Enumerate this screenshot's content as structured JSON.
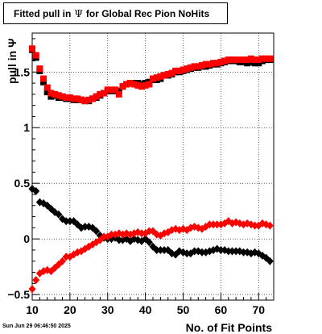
{
  "title": {
    "prefix": "Fitted pull in",
    "symbol": "Ψ",
    "suffix": "for Global Rec Pion NoHits"
  },
  "timestamp": "Sun Jun 29 06:46:50 2025",
  "chart_data": {
    "type": "scatter",
    "xlabel": "No. of Fit Points",
    "ylabel": "pull in Ψ",
    "xlim": [
      10,
      74
    ],
    "ylim": [
      -0.55,
      1.85
    ],
    "xticks": [
      10,
      20,
      30,
      40,
      50,
      60,
      70
    ],
    "yticks": [
      -0.5,
      0,
      0.5,
      1,
      1.5
    ],
    "ytick_labels": [
      "−0.5",
      "0",
      "0.5",
      "1",
      "1.5"
    ],
    "grid": true,
    "colors": {
      "series_1": "#000000",
      "series_2": "#ff0000"
    },
    "series": [
      {
        "marker": "square",
        "color": "#000000",
        "x": [
          10,
          11,
          12,
          13,
          14,
          15,
          16,
          17,
          18,
          19,
          20,
          21,
          22,
          23,
          24,
          25,
          26,
          27,
          28,
          29,
          30,
          31,
          32,
          33,
          34,
          35,
          36,
          37,
          38,
          39,
          40,
          41,
          42,
          43,
          44,
          45,
          46,
          47,
          48,
          49,
          50,
          51,
          52,
          53,
          54,
          55,
          56,
          57,
          58,
          59,
          60,
          61,
          62,
          63,
          64,
          65,
          66,
          67,
          68,
          69,
          70,
          71,
          72,
          73
        ],
        "y": [
          1.7,
          1.63,
          1.51,
          1.41,
          1.32,
          1.28,
          1.29,
          1.27,
          1.27,
          1.26,
          1.26,
          1.25,
          1.25,
          1.25,
          1.24,
          1.24,
          1.26,
          1.27,
          1.29,
          1.31,
          1.33,
          1.33,
          1.33,
          1.33,
          1.37,
          1.39,
          1.4,
          1.4,
          1.4,
          1.39,
          1.4,
          1.41,
          1.43,
          1.43,
          1.44,
          1.47,
          1.47,
          1.48,
          1.5,
          1.5,
          1.51,
          1.52,
          1.53,
          1.54,
          1.54,
          1.55,
          1.55,
          1.56,
          1.57,
          1.57,
          1.58,
          1.59,
          1.6,
          1.6,
          1.6,
          1.59,
          1.59,
          1.58,
          1.59,
          1.58,
          1.58,
          1.6,
          1.61,
          1.61
        ]
      },
      {
        "marker": "square",
        "color": "#ff0000",
        "x": [
          10,
          11,
          12,
          13,
          14,
          15,
          16,
          17,
          18,
          19,
          20,
          21,
          22,
          23,
          24,
          25,
          26,
          27,
          28,
          29,
          30,
          31,
          32,
          33,
          34,
          35,
          36,
          37,
          38,
          39,
          40,
          41,
          42,
          43,
          44,
          45,
          46,
          47,
          48,
          49,
          50,
          51,
          52,
          53,
          54,
          55,
          56,
          57,
          58,
          59,
          60,
          61,
          62,
          63,
          64,
          65,
          66,
          67,
          68,
          69,
          70,
          71,
          72,
          73
        ],
        "y": [
          1.71,
          1.65,
          1.53,
          1.44,
          1.36,
          1.31,
          1.3,
          1.29,
          1.28,
          1.27,
          1.27,
          1.26,
          1.26,
          1.25,
          1.24,
          1.25,
          1.26,
          1.28,
          1.3,
          1.31,
          1.34,
          1.34,
          1.34,
          1.3,
          1.37,
          1.39,
          1.4,
          1.39,
          1.38,
          1.37,
          1.38,
          1.39,
          1.44,
          1.45,
          1.46,
          1.47,
          1.48,
          1.49,
          1.51,
          1.51,
          1.52,
          1.53,
          1.54,
          1.55,
          1.55,
          1.56,
          1.57,
          1.57,
          1.58,
          1.58,
          1.59,
          1.6,
          1.61,
          1.61,
          1.61,
          1.61,
          1.61,
          1.61,
          1.62,
          1.61,
          1.61,
          1.62,
          1.62,
          1.62
        ]
      },
      {
        "marker": "diamond",
        "color": "#000000",
        "x": [
          10,
          11,
          12,
          13,
          14,
          15,
          16,
          17,
          18,
          19,
          20,
          21,
          22,
          23,
          24,
          25,
          26,
          27,
          28,
          29,
          30,
          31,
          32,
          33,
          34,
          35,
          36,
          37,
          38,
          39,
          40,
          41,
          42,
          43,
          44,
          45,
          46,
          47,
          48,
          49,
          50,
          51,
          52,
          53,
          54,
          55,
          56,
          57,
          58,
          59,
          60,
          61,
          62,
          63,
          64,
          65,
          66,
          67,
          68,
          69,
          70,
          71,
          72,
          73
        ],
        "y": [
          0.45,
          0.43,
          0.33,
          0.32,
          0.3,
          0.27,
          0.24,
          0.22,
          0.18,
          0.16,
          0.16,
          0.16,
          0.13,
          0.1,
          0.11,
          0.11,
          0.1,
          0.07,
          0.03,
          0.01,
          0.0,
          0.0,
          0.01,
          -0.01,
          -0.01,
          0.0,
          -0.02,
          0.0,
          -0.01,
          -0.02,
          0.0,
          -0.03,
          -0.07,
          -0.1,
          -0.1,
          -0.1,
          -0.1,
          -0.13,
          -0.14,
          -0.11,
          -0.12,
          -0.13,
          -0.13,
          -0.11,
          -0.11,
          -0.12,
          -0.12,
          -0.11,
          -0.1,
          -0.09,
          -0.1,
          -0.1,
          -0.11,
          -0.11,
          -0.11,
          -0.11,
          -0.12,
          -0.12,
          -0.13,
          -0.12,
          -0.13,
          -0.15,
          -0.17,
          -0.2
        ]
      },
      {
        "marker": "diamond",
        "color": "#ff0000",
        "x": [
          10,
          11,
          12,
          13,
          14,
          15,
          16,
          17,
          18,
          19,
          20,
          21,
          22,
          23,
          24,
          25,
          26,
          27,
          28,
          29,
          30,
          31,
          32,
          33,
          34,
          35,
          36,
          37,
          38,
          39,
          40,
          41,
          42,
          43,
          44,
          45,
          46,
          47,
          48,
          49,
          50,
          51,
          52,
          53,
          54,
          55,
          56,
          57,
          58,
          59,
          60,
          61,
          62,
          63,
          64,
          65,
          66,
          67,
          68,
          69,
          70,
          71,
          72,
          73
        ],
        "y": [
          -0.45,
          -0.37,
          -0.31,
          -0.29,
          -0.28,
          -0.29,
          -0.26,
          -0.23,
          -0.2,
          -0.16,
          -0.16,
          -0.14,
          -0.12,
          -0.11,
          -0.09,
          -0.07,
          -0.05,
          -0.03,
          -0.01,
          0.02,
          0.02,
          0.04,
          0.04,
          0.05,
          0.04,
          0.05,
          0.04,
          0.05,
          0.06,
          0.05,
          0.05,
          0.07,
          0.07,
          0.04,
          0.03,
          0.05,
          0.06,
          0.08,
          0.09,
          0.08,
          0.09,
          0.08,
          0.1,
          0.11,
          0.1,
          0.09,
          0.11,
          0.13,
          0.13,
          0.13,
          0.13,
          0.14,
          0.16,
          0.14,
          0.15,
          0.14,
          0.13,
          0.14,
          0.13,
          0.12,
          0.12,
          0.14,
          0.13,
          0.12
        ]
      }
    ]
  }
}
